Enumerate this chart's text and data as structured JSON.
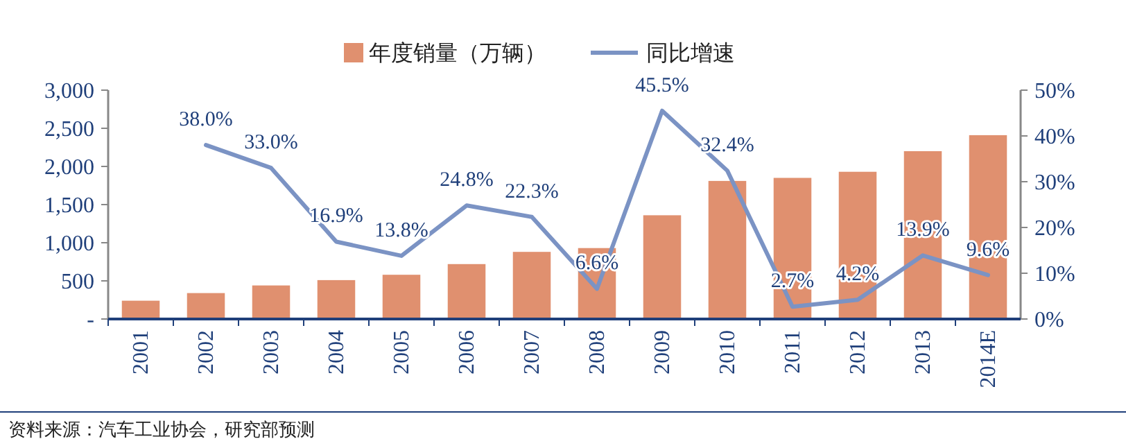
{
  "chart_data": {
    "type": "bar",
    "categories": [
      "2001",
      "2002",
      "2003",
      "2004",
      "2005",
      "2006",
      "2007",
      "2008",
      "2009",
      "2010",
      "2011",
      "2012",
      "2013",
      "2014E"
    ],
    "series": [
      {
        "name": "年度销量（万辆）",
        "color": "#e0906f",
        "values": [
          240,
          340,
          440,
          510,
          580,
          720,
          880,
          930,
          1360,
          1810,
          1850,
          1930,
          2200,
          2410
        ]
      },
      {
        "name": "同比增速",
        "type": "line",
        "axis": "y2",
        "color": "#7b93c4",
        "values": [
          null,
          38.0,
          33.0,
          16.9,
          13.8,
          24.8,
          22.3,
          6.6,
          45.5,
          32.4,
          2.7,
          4.2,
          13.9,
          9.6
        ],
        "value_labels": [
          null,
          "38.0%",
          "33.0%",
          "16.9%",
          "13.8%",
          "24.8%",
          "22.3%",
          "6.6%",
          "45.5%",
          "32.4%",
          "2.7%",
          "4.2%",
          "13.9%",
          "9.6%"
        ]
      }
    ],
    "ylim": [
      0,
      3000
    ],
    "yticks": [
      {
        "value": 0,
        "label": "-"
      },
      {
        "value": 500,
        "label": "500"
      },
      {
        "value": 1000,
        "label": "1,000"
      },
      {
        "value": 1500,
        "label": "1,500"
      },
      {
        "value": 2000,
        "label": "2,000"
      },
      {
        "value": 2500,
        "label": "2,500"
      },
      {
        "value": 3000,
        "label": "3,000"
      }
    ],
    "y2lim": [
      0,
      50
    ],
    "y2ticks": [
      {
        "value": 0,
        "label": "0%"
      },
      {
        "value": 10,
        "label": "10%"
      },
      {
        "value": 20,
        "label": "20%"
      },
      {
        "value": 30,
        "label": "30%"
      },
      {
        "value": 40,
        "label": "40%"
      },
      {
        "value": 50,
        "label": "50%"
      }
    ],
    "legend": "top",
    "grid": false,
    "marker": "none",
    "line_style": "solid",
    "annotations": [
      "资料来源：汽车工业协会，研究部预测"
    ]
  }
}
